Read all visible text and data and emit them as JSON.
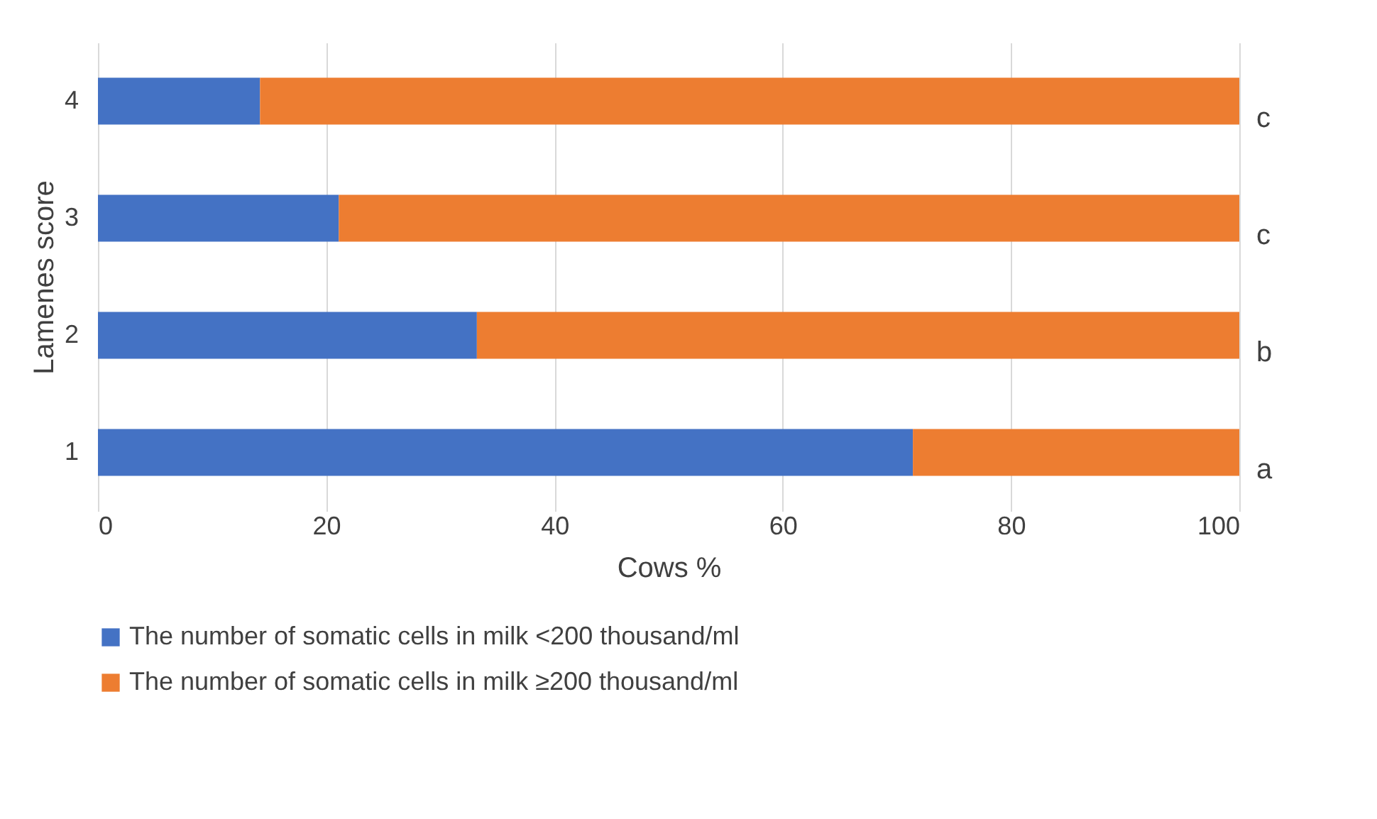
{
  "chart_data": {
    "type": "bar",
    "orientation": "horizontal",
    "stacked": true,
    "xlabel": "Cows %",
    "ylabel": "Lamenes score",
    "categories": [
      "4",
      "3",
      "2",
      "1"
    ],
    "series": [
      {
        "name": "The number of somatic cells in milk <200 thousand/ml",
        "color": "#4472c4",
        "values": [
          14.2,
          21.1,
          33.2,
          71.4
        ]
      },
      {
        "name": "The number of somatic cells in milk ≥200 thousand/ml",
        "color": "#ed7d31",
        "values": [
          85.8,
          78.9,
          66.8,
          28.6
        ]
      }
    ],
    "xlim": [
      0,
      100
    ],
    "xticks": [
      0,
      20,
      40,
      60,
      80,
      100
    ],
    "grid": "x",
    "legend": "bottom",
    "annotations": [
      "c",
      "c",
      "b",
      "a"
    ]
  }
}
